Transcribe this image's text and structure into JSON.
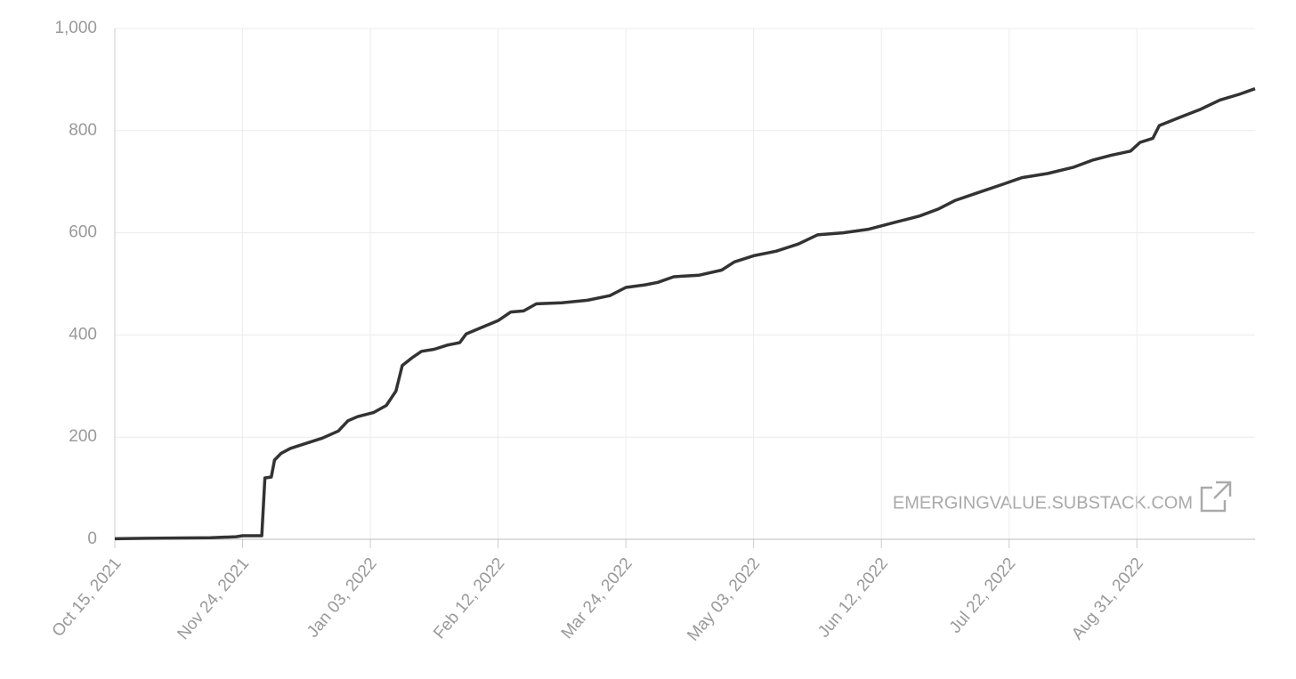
{
  "chart_data": {
    "type": "line",
    "watermark": "EMERGINGVALUE.SUBSTACK.COM",
    "x": [
      "2021-10-15",
      "2021-10-25",
      "2021-11-14",
      "2021-11-22",
      "2021-11-24",
      "2021-11-30",
      "2021-12-01",
      "2021-12-03",
      "2021-12-04",
      "2021-12-06",
      "2021-12-09",
      "2021-12-14",
      "2021-12-19",
      "2021-12-24",
      "2021-12-27",
      "2021-12-30",
      "2022-01-04",
      "2022-01-08",
      "2022-01-11",
      "2022-01-13",
      "2022-01-16",
      "2022-01-19",
      "2022-01-23",
      "2022-01-27",
      "2022-01-31",
      "2022-02-02",
      "2022-02-07",
      "2022-02-12",
      "2022-02-16",
      "2022-02-20",
      "2022-02-24",
      "2022-03-04",
      "2022-03-12",
      "2022-03-19",
      "2022-03-24",
      "2022-03-30",
      "2022-04-03",
      "2022-04-08",
      "2022-04-16",
      "2022-04-23",
      "2022-04-27",
      "2022-05-03",
      "2022-05-10",
      "2022-05-17",
      "2022-05-23",
      "2022-05-31",
      "2022-06-08",
      "2022-06-16",
      "2022-06-24",
      "2022-06-30",
      "2022-07-05",
      "2022-07-12",
      "2022-07-20",
      "2022-07-26",
      "2022-08-03",
      "2022-08-11",
      "2022-08-17",
      "2022-08-23",
      "2022-08-29",
      "2022-09-01",
      "2022-09-05",
      "2022-09-07",
      "2022-09-13",
      "2022-09-20",
      "2022-09-26",
      "2022-10-02",
      "2022-10-07"
    ],
    "values": [
      1,
      2,
      3,
      5,
      7,
      7,
      120,
      122,
      155,
      168,
      178,
      188,
      198,
      212,
      232,
      240,
      248,
      262,
      290,
      340,
      355,
      368,
      372,
      380,
      385,
      402,
      415,
      428,
      445,
      447,
      461,
      463,
      468,
      477,
      493,
      498,
      503,
      514,
      517,
      527,
      543,
      555,
      564,
      578,
      596,
      600,
      607,
      620,
      633,
      647,
      663,
      678,
      695,
      708,
      716,
      728,
      742,
      752,
      760,
      777,
      785,
      810,
      825,
      842,
      860,
      871,
      882
    ],
    "color": "#333333",
    "xlim": [
      "2021-10-15",
      "2022-10-07"
    ],
    "xticks": [
      {
        "value": "2021-10-15",
        "label": "Oct 15, 2021"
      },
      {
        "value": "2021-11-24",
        "label": "Nov 24, 2021"
      },
      {
        "value": "2022-01-03",
        "label": "Jan 03, 2022"
      },
      {
        "value": "2022-02-12",
        "label": "Feb 12, 2022"
      },
      {
        "value": "2022-03-24",
        "label": "Mar 24, 2022"
      },
      {
        "value": "2022-05-03",
        "label": "May 03, 2022"
      },
      {
        "value": "2022-06-12",
        "label": "Jun 12, 2022"
      },
      {
        "value": "2022-07-22",
        "label": "Jul 22, 2022"
      },
      {
        "value": "2022-08-31",
        "label": "Aug 31, 2022"
      }
    ],
    "ylim": [
      0,
      1000
    ],
    "yticks": [
      0,
      200,
      400,
      600,
      800,
      {
        "value": 1000,
        "label": "1,000"
      }
    ],
    "grid": true
  }
}
